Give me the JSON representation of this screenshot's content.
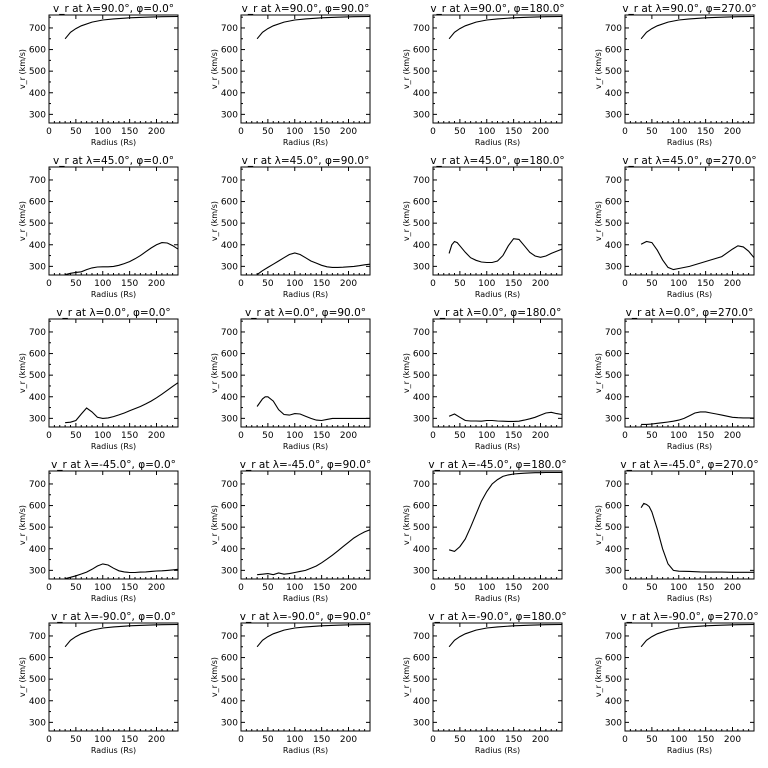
{
  "chart_data": [
    {
      "type": "line",
      "title": "v_r at λ=90.0°, φ=0.0°",
      "xlabel": "Radius (Rs)",
      "ylabel": "v_r (km/s)",
      "xlim": [
        0,
        240
      ],
      "ylim": [
        260,
        760
      ],
      "x": [
        30,
        40,
        50,
        60,
        80,
        100,
        120,
        150,
        180,
        210,
        240
      ],
      "y": [
        650,
        680,
        697,
        710,
        727,
        737,
        742,
        747,
        750,
        752,
        753
      ]
    },
    {
      "type": "line",
      "title": "v_r at λ=90.0°, φ=90.0°",
      "xlabel": "Radius (Rs)",
      "ylabel": "v_r (km/s)",
      "xlim": [
        0,
        240
      ],
      "ylim": [
        260,
        760
      ],
      "x": [
        30,
        40,
        50,
        60,
        80,
        100,
        120,
        150,
        180,
        210,
        240
      ],
      "y": [
        650,
        680,
        697,
        710,
        727,
        737,
        742,
        747,
        750,
        752,
        753
      ]
    },
    {
      "type": "line",
      "title": "v_r at λ=90.0°, φ=180.0°",
      "xlabel": "Radius (Rs)",
      "ylabel": "v_r (km/s)",
      "xlim": [
        0,
        240
      ],
      "ylim": [
        260,
        760
      ],
      "x": [
        30,
        40,
        50,
        60,
        80,
        100,
        120,
        150,
        180,
        210,
        240
      ],
      "y": [
        650,
        680,
        697,
        710,
        727,
        737,
        742,
        747,
        750,
        752,
        753
      ]
    },
    {
      "type": "line",
      "title": "v_r at λ=90.0°, φ=270.0°",
      "xlabel": "Radius (Rs)",
      "ylabel": "v_r (km/s)",
      "xlim": [
        0,
        240
      ],
      "ylim": [
        260,
        760
      ],
      "x": [
        30,
        40,
        50,
        60,
        80,
        100,
        120,
        150,
        180,
        210,
        240
      ],
      "y": [
        650,
        680,
        697,
        710,
        727,
        737,
        742,
        747,
        750,
        752,
        753
      ]
    },
    {
      "type": "line",
      "title": "v_r at λ=45.0°, φ=0.0°",
      "xlabel": "Radius (Rs)",
      "ylabel": "v_r (km/s)",
      "xlim": [
        0,
        240
      ],
      "ylim": [
        260,
        760
      ],
      "x": [
        30,
        40,
        50,
        60,
        70,
        80,
        90,
        100,
        110,
        120,
        130,
        140,
        150,
        160,
        170,
        180,
        190,
        200,
        210,
        220,
        230,
        240
      ],
      "y": [
        262,
        268,
        272,
        275,
        285,
        293,
        297,
        298,
        298,
        300,
        305,
        313,
        322,
        335,
        350,
        368,
        385,
        400,
        410,
        408,
        396,
        380
      ]
    },
    {
      "type": "line",
      "title": "v_r at λ=45.0°, φ=90.0°",
      "xlabel": "Radius (Rs)",
      "ylabel": "v_r (km/s)",
      "xlim": [
        0,
        240
      ],
      "ylim": [
        260,
        760
      ],
      "x": [
        30,
        40,
        50,
        60,
        70,
        80,
        90,
        100,
        110,
        120,
        130,
        140,
        150,
        160,
        170,
        180,
        190,
        200,
        210,
        220,
        230,
        240
      ],
      "y": [
        262,
        280,
        295,
        310,
        325,
        340,
        355,
        362,
        355,
        340,
        325,
        315,
        305,
        298,
        295,
        295,
        296,
        298,
        300,
        303,
        307,
        310
      ]
    },
    {
      "type": "line",
      "title": "v_r at λ=45.0°, φ=180.0°",
      "xlabel": "Radius (Rs)",
      "ylabel": "v_r (km/s)",
      "xlim": [
        0,
        240
      ],
      "ylim": [
        260,
        760
      ],
      "x": [
        30,
        35,
        40,
        45,
        50,
        60,
        70,
        80,
        90,
        100,
        110,
        120,
        130,
        140,
        150,
        160,
        170,
        180,
        190,
        200,
        210,
        220,
        230,
        240
      ],
      "y": [
        360,
        400,
        415,
        410,
        395,
        365,
        340,
        328,
        320,
        318,
        318,
        325,
        350,
        395,
        428,
        425,
        395,
        365,
        348,
        342,
        348,
        360,
        370,
        380
      ]
    },
    {
      "type": "line",
      "title": "v_r at λ=45.0°, φ=270.0°",
      "xlabel": "Radius (Rs)",
      "ylabel": "v_r (km/s)",
      "xlim": [
        0,
        240
      ],
      "ylim": [
        260,
        760
      ],
      "x": [
        30,
        40,
        50,
        60,
        70,
        80,
        90,
        100,
        120,
        140,
        160,
        180,
        200,
        210,
        220,
        230,
        240
      ],
      "y": [
        402,
        415,
        410,
        375,
        330,
        295,
        285,
        290,
        300,
        315,
        330,
        345,
        380,
        395,
        390,
        370,
        340
      ]
    },
    {
      "type": "line",
      "title": "v_r at λ=0.0°, φ=0.0°",
      "xlabel": "Radius (Rs)",
      "ylabel": "v_r (km/s)",
      "xlim": [
        0,
        240
      ],
      "ylim": [
        260,
        760
      ],
      "x": [
        30,
        40,
        50,
        60,
        70,
        80,
        90,
        100,
        110,
        120,
        130,
        140,
        150,
        160,
        170,
        180,
        190,
        200,
        210,
        220,
        230,
        240
      ],
      "y": [
        280,
        282,
        290,
        320,
        348,
        330,
        305,
        300,
        302,
        308,
        316,
        325,
        335,
        345,
        355,
        367,
        380,
        395,
        412,
        430,
        448,
        465
      ]
    },
    {
      "type": "line",
      "title": "v_r at λ=0.0°, φ=90.0°",
      "xlabel": "Radius (Rs)",
      "ylabel": "v_r (km/s)",
      "xlim": [
        0,
        240
      ],
      "ylim": [
        260,
        760
      ],
      "x": [
        30,
        40,
        45,
        50,
        60,
        70,
        80,
        90,
        100,
        110,
        120,
        130,
        140,
        150,
        160,
        170,
        180,
        190,
        200,
        210,
        220,
        230,
        240
      ],
      "y": [
        355,
        390,
        400,
        400,
        380,
        340,
        318,
        315,
        322,
        320,
        310,
        300,
        292,
        290,
        295,
        300,
        300,
        300,
        300,
        300,
        300,
        300,
        300
      ]
    },
    {
      "type": "line",
      "title": "v_r at λ=0.0°, φ=180.0°",
      "xlabel": "Radius (Rs)",
      "ylabel": "v_r (km/s)",
      "xlim": [
        0,
        240
      ],
      "ylim": [
        260,
        760
      ],
      "x": [
        30,
        40,
        50,
        60,
        70,
        80,
        90,
        100,
        110,
        120,
        130,
        140,
        150,
        160,
        170,
        180,
        190,
        200,
        210,
        220,
        230,
        240
      ],
      "y": [
        310,
        320,
        305,
        290,
        288,
        288,
        287,
        290,
        290,
        288,
        287,
        286,
        286,
        287,
        292,
        298,
        305,
        315,
        325,
        328,
        322,
        318
      ]
    },
    {
      "type": "line",
      "title": "v_r at λ=0.0°, φ=270.0°",
      "xlabel": "Radius (Rs)",
      "ylabel": "v_r (km/s)",
      "xlim": [
        0,
        240
      ],
      "ylim": [
        260,
        760
      ],
      "x": [
        30,
        40,
        50,
        60,
        70,
        80,
        90,
        100,
        110,
        120,
        130,
        140,
        150,
        160,
        170,
        180,
        190,
        200,
        210,
        220,
        230,
        240
      ],
      "y": [
        272,
        272,
        274,
        277,
        280,
        283,
        287,
        292,
        300,
        312,
        325,
        330,
        330,
        325,
        320,
        315,
        310,
        305,
        303,
        302,
        302,
        301
      ]
    },
    {
      "type": "line",
      "title": "v_r at λ=-45.0°, φ=0.0°",
      "xlabel": "Radius (Rs)",
      "ylabel": "v_r (km/s)",
      "xlim": [
        0,
        240
      ],
      "ylim": [
        260,
        760
      ],
      "x": [
        30,
        40,
        50,
        60,
        70,
        80,
        90,
        100,
        110,
        120,
        130,
        140,
        150,
        160,
        170,
        180,
        190,
        200,
        210,
        220,
        230,
        240
      ],
      "y": [
        262,
        268,
        275,
        283,
        292,
        305,
        320,
        330,
        325,
        310,
        298,
        293,
        290,
        290,
        292,
        293,
        295,
        297,
        298,
        300,
        302,
        305
      ]
    },
    {
      "type": "line",
      "title": "v_r at λ=-45.0°, φ=90.0°",
      "xlabel": "Radius (Rs)",
      "ylabel": "v_r (km/s)",
      "xlim": [
        0,
        240
      ],
      "ylim": [
        260,
        760
      ],
      "x": [
        30,
        40,
        50,
        60,
        70,
        80,
        90,
        100,
        110,
        120,
        130,
        140,
        150,
        160,
        170,
        180,
        190,
        200,
        210,
        220,
        230,
        240
      ],
      "y": [
        280,
        282,
        285,
        280,
        288,
        282,
        285,
        290,
        295,
        300,
        310,
        320,
        335,
        352,
        370,
        390,
        410,
        430,
        450,
        465,
        478,
        488
      ]
    },
    {
      "type": "line",
      "title": "v_r at λ=-45.0°, φ=180.0°",
      "xlabel": "Radius (Rs)",
      "ylabel": "v_r (km/s)",
      "xlim": [
        0,
        240
      ],
      "ylim": [
        260,
        760
      ],
      "x": [
        30,
        40,
        50,
        60,
        70,
        80,
        90,
        100,
        110,
        120,
        130,
        140,
        150,
        160,
        170,
        180,
        190,
        200,
        210,
        220,
        230,
        240
      ],
      "y": [
        395,
        388,
        410,
        445,
        500,
        560,
        620,
        665,
        700,
        720,
        735,
        742,
        746,
        748,
        750,
        751,
        752,
        752,
        753,
        753,
        753,
        753
      ]
    },
    {
      "type": "line",
      "title": "v_r at λ=-45.0°, φ=270.0°",
      "xlabel": "Radius (Rs)",
      "ylabel": "v_r (km/s)",
      "xlim": [
        0,
        240
      ],
      "ylim": [
        260,
        760
      ],
      "x": [
        30,
        35,
        40,
        45,
        50,
        60,
        70,
        80,
        90,
        100,
        120,
        140,
        160,
        180,
        200,
        220,
        240
      ],
      "y": [
        590,
        610,
        605,
        595,
        570,
        490,
        400,
        330,
        300,
        296,
        295,
        293,
        292,
        292,
        291,
        291,
        291
      ]
    },
    {
      "type": "line",
      "title": "v_r at λ=-90.0°, φ=0.0°",
      "xlabel": "Radius (Rs)",
      "ylabel": "v_r (km/s)",
      "xlim": [
        0,
        240
      ],
      "ylim": [
        260,
        760
      ],
      "x": [
        30,
        40,
        50,
        60,
        80,
        100,
        120,
        150,
        180,
        210,
        240
      ],
      "y": [
        650,
        680,
        697,
        710,
        727,
        737,
        742,
        747,
        750,
        752,
        753
      ]
    },
    {
      "type": "line",
      "title": "v_r at λ=-90.0°, φ=90.0°",
      "xlabel": "Radius (Rs)",
      "ylabel": "v_r (km/s)",
      "xlim": [
        0,
        240
      ],
      "ylim": [
        260,
        760
      ],
      "x": [
        30,
        40,
        50,
        60,
        80,
        100,
        120,
        150,
        180,
        210,
        240
      ],
      "y": [
        650,
        680,
        697,
        710,
        727,
        737,
        742,
        747,
        750,
        752,
        753
      ]
    },
    {
      "type": "line",
      "title": "v_r at λ=-90.0°, φ=180.0°",
      "xlabel": "Radius (Rs)",
      "ylabel": "v_r (km/s)",
      "xlim": [
        0,
        240
      ],
      "ylim": [
        260,
        760
      ],
      "x": [
        30,
        40,
        50,
        60,
        80,
        100,
        120,
        150,
        180,
        210,
        240
      ],
      "y": [
        650,
        680,
        697,
        710,
        727,
        737,
        742,
        747,
        750,
        752,
        753
      ]
    },
    {
      "type": "line",
      "title": "v_r at λ=-90.0°, φ=270.0°",
      "xlabel": "Radius (Rs)",
      "ylabel": "v_r (km/s)",
      "xlim": [
        0,
        240
      ],
      "ylim": [
        260,
        760
      ],
      "x": [
        30,
        40,
        50,
        60,
        80,
        100,
        120,
        150,
        180,
        210,
        240
      ],
      "y": [
        650,
        680,
        697,
        710,
        727,
        737,
        742,
        747,
        750,
        752,
        753
      ]
    }
  ],
  "x_ticks": [
    0,
    50,
    100,
    150,
    200
  ],
  "y_ticks": [
    300,
    400,
    500,
    600,
    700
  ]
}
